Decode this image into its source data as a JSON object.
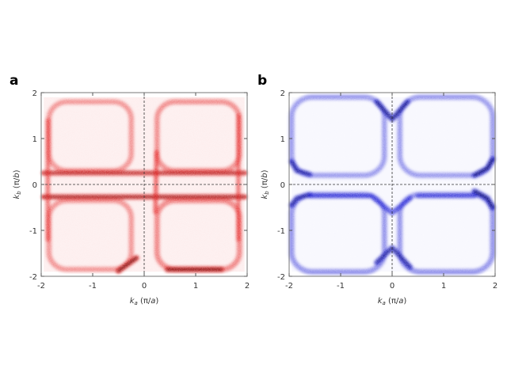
{
  "chart_data": [
    {
      "type": "heatmap",
      "panel_label": "a",
      "colormap": "white-red-black",
      "color": "#e00000",
      "xlabel": {
        "var": "k",
        "sub": "a",
        "pre": "(π/",
        "unit": "a",
        "post": ")"
      },
      "ylabel": {
        "var": "k",
        "sub": "b",
        "pre": "(π/",
        "unit": "b",
        "post": ")"
      },
      "xlim": [
        -2,
        2
      ],
      "ylim": [
        -2,
        2
      ],
      "data_extent": [
        -1.95,
        1.95,
        -1.9,
        1.9
      ],
      "xticks": [
        "-2",
        "-1",
        "0",
        "1",
        "2"
      ],
      "yticks": [
        "-2",
        "-1",
        "0",
        "1",
        "2"
      ],
      "reference_lines": {
        "x": 0,
        "y": 0,
        "style": "dashed"
      },
      "features": [
        {
          "kind": "pocket",
          "x": [
            -1.85,
            -0.25
          ],
          "y": [
            0.3,
            1.8
          ],
          "intensity": 0.35
        },
        {
          "kind": "pocket",
          "x": [
            0.25,
            1.85
          ],
          "y": [
            0.3,
            1.8
          ],
          "intensity": 0.4
        },
        {
          "kind": "pocket",
          "x": [
            -1.85,
            -0.25
          ],
          "y": [
            -1.85,
            -0.35
          ],
          "intensity": 0.35
        },
        {
          "kind": "pocket",
          "x": [
            0.25,
            1.85
          ],
          "y": [
            -1.85,
            -0.35
          ],
          "intensity": 0.45
        },
        {
          "kind": "line",
          "points": [
            [
              -1.95,
              0.25
            ],
            [
              1.95,
              0.25
            ]
          ],
          "intensity": 0.85
        },
        {
          "kind": "line",
          "points": [
            [
              -1.95,
              -0.27
            ],
            [
              1.95,
              -0.27
            ]
          ],
          "intensity": 0.9
        },
        {
          "kind": "line",
          "points": [
            [
              -1.87,
              -1.2
            ],
            [
              -1.87,
              1.4
            ]
          ],
          "intensity": 0.6
        },
        {
          "kind": "line",
          "points": [
            [
              1.83,
              -1.2
            ],
            [
              1.83,
              1.5
            ]
          ],
          "intensity": 0.6
        },
        {
          "kind": "line",
          "points": [
            [
              0.22,
              -0.6
            ],
            [
              0.24,
              0.7
            ]
          ],
          "intensity": 0.7
        },
        {
          "kind": "line",
          "points": [
            [
              0.45,
              -1.85
            ],
            [
              1.5,
              -1.85
            ]
          ],
          "intensity": 1.0
        },
        {
          "kind": "line",
          "points": [
            [
              -0.5,
              -1.88
            ],
            [
              -0.15,
              -1.6
            ]
          ],
          "intensity": 1.0
        }
      ]
    },
    {
      "type": "heatmap",
      "panel_label": "b",
      "colormap": "white-blue-black",
      "color": "#0000d0",
      "xlabel": {
        "var": "k",
        "sub": "a",
        "pre": "(π/",
        "unit": "a",
        "post": ")"
      },
      "ylabel": {
        "var": "k",
        "sub": "b",
        "pre": "(π/",
        "unit": "b",
        "post": ")"
      },
      "xlim": [
        -2,
        2
      ],
      "ylim": [
        -2,
        2
      ],
      "data_extent": [
        -1.95,
        1.95,
        -1.9,
        1.9
      ],
      "xticks": [
        "-2",
        "-1",
        "0",
        "1",
        "2"
      ],
      "yticks": [
        "-2",
        "-1",
        "0",
        "1",
        "2"
      ],
      "reference_lines": {
        "x": 0,
        "y": 0,
        "style": "dashed"
      },
      "features": [
        {
          "kind": "pocket",
          "x": [
            -1.95,
            -0.15
          ],
          "y": [
            0.2,
            1.9
          ],
          "intensity": 0.35
        },
        {
          "kind": "pocket",
          "x": [
            0.15,
            1.95
          ],
          "y": [
            0.2,
            1.9
          ],
          "intensity": 0.35
        },
        {
          "kind": "pocket",
          "x": [
            -1.95,
            -0.15
          ],
          "y": [
            -1.9,
            -0.22
          ],
          "intensity": 0.4
        },
        {
          "kind": "pocket",
          "x": [
            0.15,
            1.95
          ],
          "y": [
            -1.9,
            -0.22
          ],
          "intensity": 0.4
        },
        {
          "kind": "line",
          "points": [
            [
              -0.3,
              1.8
            ],
            [
              0,
              1.42
            ],
            [
              0.3,
              1.8
            ]
          ],
          "intensity": 0.95
        },
        {
          "kind": "line",
          "points": [
            [
              -0.35,
              -0.3
            ],
            [
              0,
              -0.62
            ],
            [
              0.35,
              -0.3
            ]
          ],
          "intensity": 0.8
        },
        {
          "kind": "line",
          "points": [
            [
              -0.3,
              -1.7
            ],
            [
              0,
              -1.38
            ],
            [
              0.35,
              -1.8
            ]
          ],
          "intensity": 0.9
        },
        {
          "kind": "line",
          "points": [
            [
              1.6,
              -0.15
            ],
            [
              1.85,
              -0.3
            ],
            [
              1.95,
              -0.5
            ]
          ],
          "intensity": 1.0
        },
        {
          "kind": "line",
          "points": [
            [
              1.6,
              0.2
            ],
            [
              1.85,
              0.35
            ],
            [
              1.95,
              0.55
            ]
          ],
          "intensity": 1.0
        },
        {
          "kind": "line",
          "points": [
            [
              -1.95,
              0.5
            ],
            [
              -1.85,
              0.3
            ],
            [
              -1.6,
              0.22
            ]
          ],
          "intensity": 0.9
        },
        {
          "kind": "line",
          "points": [
            [
              -1.95,
              -0.45
            ],
            [
              -1.85,
              -0.3
            ],
            [
              -1.6,
              -0.22
            ]
          ],
          "intensity": 0.9
        },
        {
          "kind": "line",
          "points": [
            [
              -1.6,
              -0.25
            ],
            [
              -0.4,
              -0.25
            ]
          ],
          "intensity": 0.75
        },
        {
          "kind": "line",
          "points": [
            [
              0.5,
              -0.25
            ],
            [
              1.6,
              -0.25
            ]
          ],
          "intensity": 0.7
        }
      ]
    }
  ]
}
